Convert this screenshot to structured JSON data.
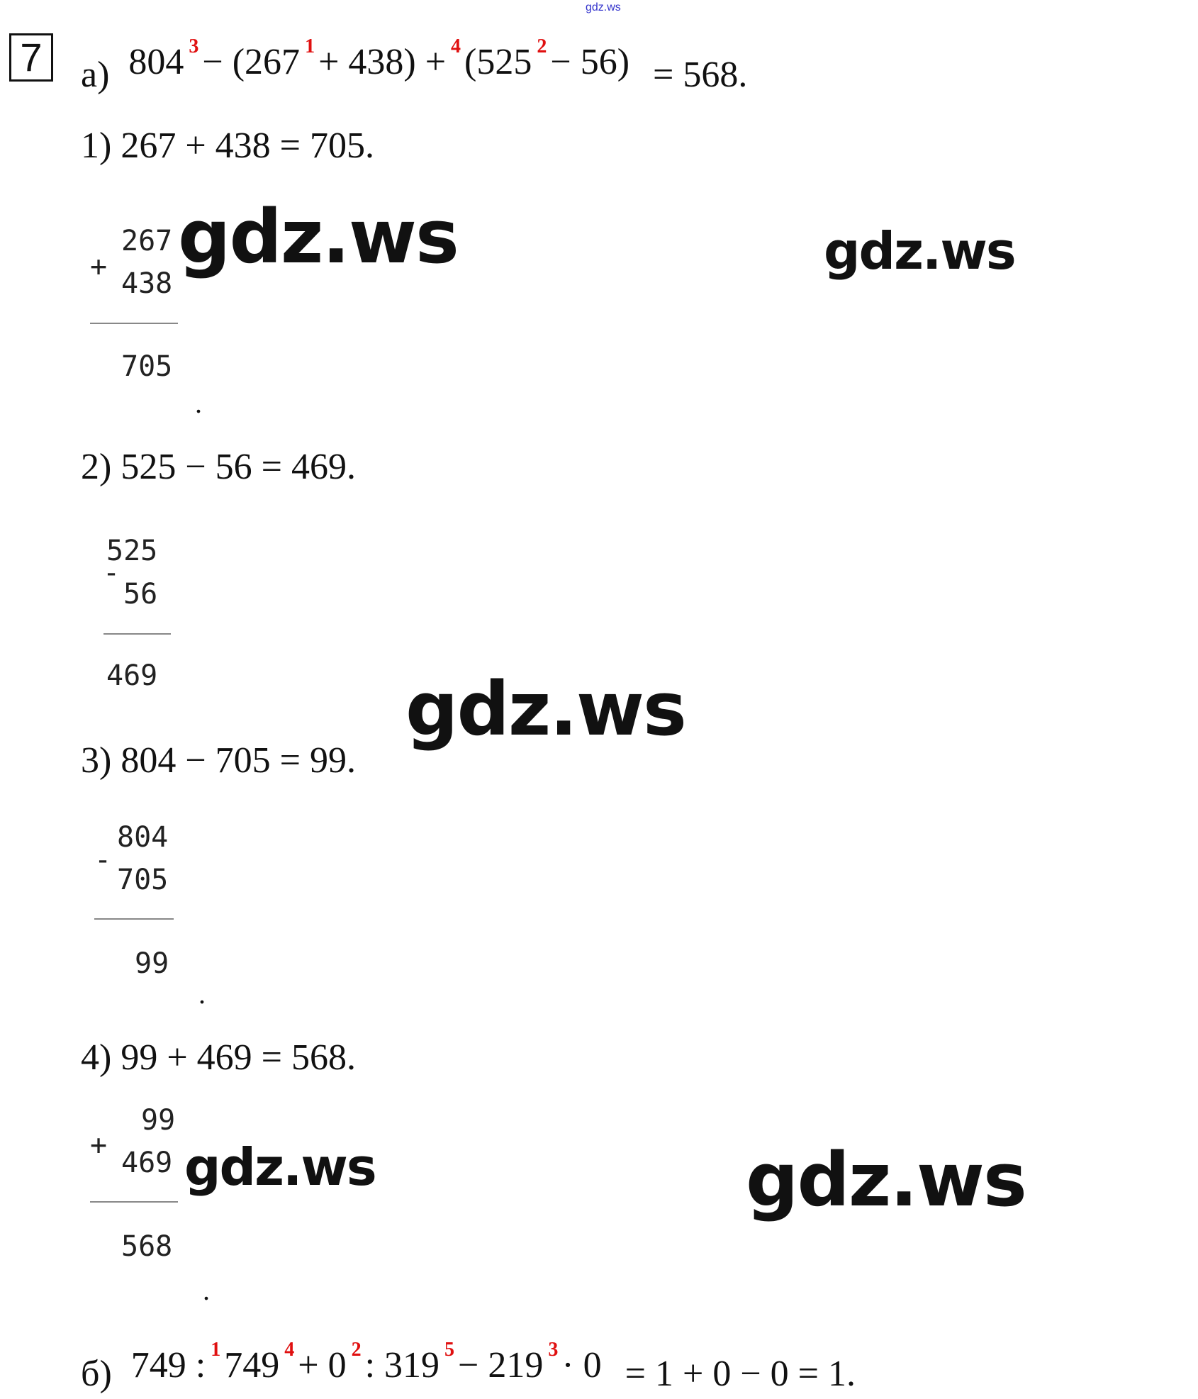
{
  "header_watermark": "gdz.ws",
  "task_number": "7",
  "part_a": {
    "label": "а)",
    "expression": [
      "804",
      "−",
      "(267",
      "+",
      "438)",
      "+",
      "(525",
      "−",
      "56)"
    ],
    "order_marks": [
      "3",
      "1",
      "4",
      "2"
    ],
    "result": "= 568."
  },
  "steps": [
    {
      "text": "1) 267 + 438 = 705.",
      "column": {
        "operator": "+",
        "top": "267",
        "bottom": "438",
        "result": "705"
      }
    },
    {
      "text": "2) 525 − 56 = 469.",
      "column": {
        "operator": "-",
        "top": "525",
        "bottom": "56",
        "result": "469"
      }
    },
    {
      "text": "3) 804 − 705 = 99.",
      "column": {
        "operator": "-",
        "top": "804",
        "bottom": "705",
        "result": "99"
      }
    },
    {
      "text": "4) 99 + 469 = 568.",
      "column": {
        "operator": "+",
        "top": "99",
        "bottom": "469",
        "result": "568"
      }
    }
  ],
  "part_b": {
    "label": "б)",
    "expression": [
      "749",
      ":",
      "749",
      "+",
      "0",
      ":",
      "319",
      "−",
      "219",
      "·",
      "0"
    ],
    "order_marks": [
      "1",
      "4",
      "2",
      "5",
      "3"
    ],
    "result": "= 1 + 0 − 0 = 1."
  },
  "watermarks": [
    "gdz.ws",
    "gdz.ws",
    "gdz.ws",
    "gdz.ws",
    "gdz.ws"
  ],
  "colors": {
    "order_marks": "#e01010",
    "header_link": "#3333cc"
  }
}
